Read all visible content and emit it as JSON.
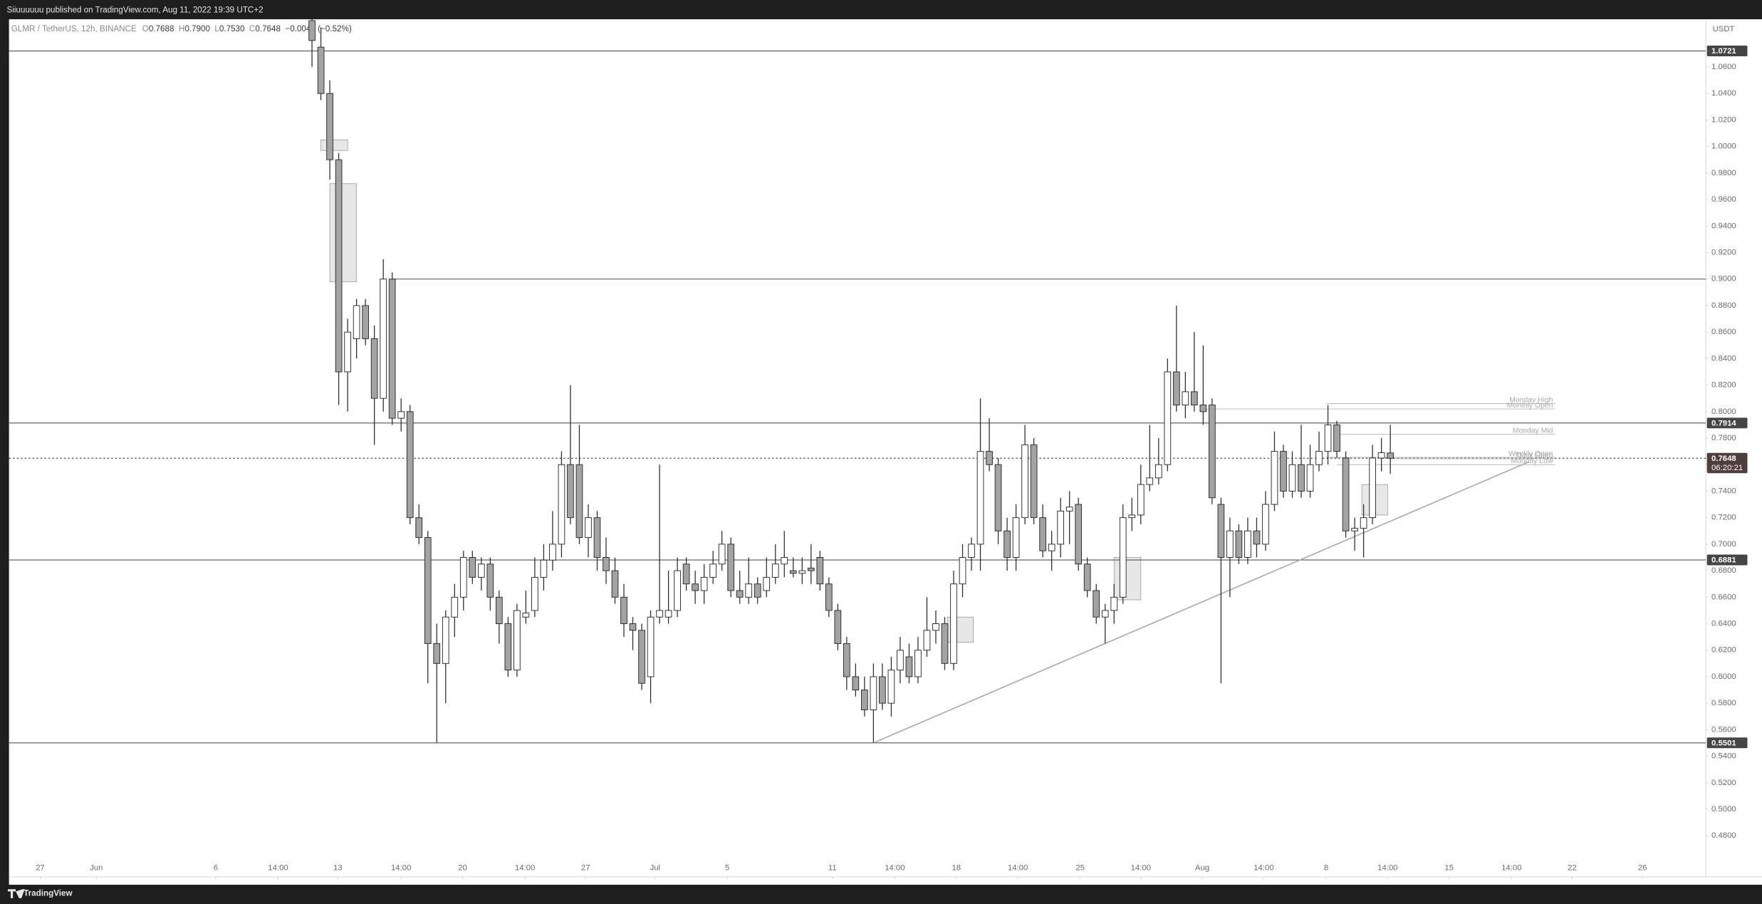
{
  "header": {
    "title": "Siiuuuuuu published on TradingView.com, Aug 11, 2022 19:39 UTC+2"
  },
  "footer": {
    "brand": "TradingView"
  },
  "chart_data": {
    "type": "candlestick",
    "legend": {
      "symbol": "GLMR / TetherUS, 12h, BINANCE",
      "items": [
        {
          "key": "O",
          "value": "0.7688"
        },
        {
          "key": "H",
          "value": "0.7900"
        },
        {
          "key": "L",
          "value": "0.7530"
        },
        {
          "key": "C",
          "value": "0.7648"
        }
      ],
      "change": "−0.0040 (−0.52%)"
    },
    "y_unit": "USDT",
    "up_color": "#ffffff",
    "down_color": "#a3a3a3",
    "outline_color": "#2b2b2b",
    "xlim": [
      -3.5,
      186.9
    ],
    "ylim": [
      0.449,
      1.096
    ],
    "yticks": [
      {
        "value": 0.48,
        "label": "0.4800"
      },
      {
        "value": 0.5,
        "label": "0.5000"
      },
      {
        "value": 0.52,
        "label": "0.5200"
      },
      {
        "value": 0.54,
        "label": "0.5400"
      },
      {
        "value": 0.56,
        "label": "0.5600"
      },
      {
        "value": 0.58,
        "label": "0.5800"
      },
      {
        "value": 0.6,
        "label": "0.6000"
      },
      {
        "value": 0.62,
        "label": "0.6200"
      },
      {
        "value": 0.64,
        "label": "0.6400"
      },
      {
        "value": 0.66,
        "label": "0.6600"
      },
      {
        "value": 0.68,
        "label": "0.6800"
      },
      {
        "value": 0.7,
        "label": "0.7000"
      },
      {
        "value": 0.72,
        "label": "0.7200"
      },
      {
        "value": 0.74,
        "label": "0.7400"
      },
      {
        "value": 0.76,
        "label": "0.7600"
      },
      {
        "value": 0.78,
        "label": "0.7800"
      },
      {
        "value": 0.8,
        "label": "0.8000"
      },
      {
        "value": 0.82,
        "label": "0.8200"
      },
      {
        "value": 0.84,
        "label": "0.8400"
      },
      {
        "value": 0.86,
        "label": "0.8600"
      },
      {
        "value": 0.88,
        "label": "0.8800"
      },
      {
        "value": 0.9,
        "label": "0.9000"
      },
      {
        "value": 0.92,
        "label": "0.9200"
      },
      {
        "value": 0.94,
        "label": "0.9400"
      },
      {
        "value": 0.96,
        "label": "0.9600"
      },
      {
        "value": 0.98,
        "label": "0.9800"
      },
      {
        "value": 1.0,
        "label": "1.0000"
      },
      {
        "value": 1.02,
        "label": "1.0200"
      },
      {
        "value": 1.04,
        "label": "1.0400"
      },
      {
        "value": 1.06,
        "label": "1.0600"
      }
    ],
    "xticks": [
      {
        "value": 0,
        "label": "27"
      },
      {
        "value": 6.3,
        "label": "Jun"
      },
      {
        "value": 19.7,
        "label": "6"
      },
      {
        "value": 26.7,
        "label": "14:00"
      },
      {
        "value": 33.4,
        "label": "13"
      },
      {
        "value": 40.5,
        "label": "14:00"
      },
      {
        "value": 47.4,
        "label": "20"
      },
      {
        "value": 54.4,
        "label": "14:00"
      },
      {
        "value": 61.2,
        "label": "27"
      },
      {
        "value": 69.0,
        "label": "Jul"
      },
      {
        "value": 77.1,
        "label": "5"
      },
      {
        "value": 88.9,
        "label": "11"
      },
      {
        "value": 95.9,
        "label": "14:00"
      },
      {
        "value": 102.8,
        "label": "18"
      },
      {
        "value": 109.7,
        "label": "14:00"
      },
      {
        "value": 116.7,
        "label": "25"
      },
      {
        "value": 123.5,
        "label": "14:00"
      },
      {
        "value": 130.4,
        "label": "Aug"
      },
      {
        "value": 137.3,
        "label": "14:00"
      },
      {
        "value": 144.3,
        "label": "8"
      },
      {
        "value": 151.2,
        "label": "14:00"
      },
      {
        "value": 158.1,
        "label": "15"
      },
      {
        "value": 165.1,
        "label": "14:00"
      },
      {
        "value": 171.9,
        "label": "22"
      },
      {
        "value": 179.8,
        "label": "26"
      }
    ],
    "x": [
      30.5,
      31.5,
      32.5,
      33.5,
      34.5,
      35.5,
      36.5,
      37.5,
      38.5,
      39.5,
      40.5,
      41.5,
      42.5,
      43.5,
      44.5,
      45.5,
      46.5,
      47.5,
      48.5,
      49.5,
      50.5,
      51.5,
      52.5,
      53.5,
      54.5,
      55.5,
      56.5,
      57.5,
      58.5,
      59.5,
      60.5,
      61.5,
      62.5,
      63.5,
      64.5,
      65.5,
      66.5,
      67.5,
      68.5,
      69.5,
      70.5,
      71.5,
      72.5,
      73.5,
      74.5,
      75.5,
      76.5,
      77.5,
      78.5,
      79.5,
      80.5,
      81.5,
      82.5,
      83.5,
      84.5,
      85.5,
      86.5,
      87.5,
      88.5,
      89.5,
      90.5,
      91.5,
      92.5,
      93.5,
      94.5,
      95.5,
      96.5,
      97.5,
      98.5,
      99.5,
      100.5,
      101.5,
      102.5,
      103.5,
      104.5,
      105.5,
      106.5,
      107.5,
      108.5,
      109.5,
      110.5,
      111.5,
      112.5,
      113.5,
      114.5,
      115.5,
      116.5,
      117.5,
      118.5,
      119.5,
      120.5,
      121.5,
      122.5,
      123.5,
      124.5,
      125.5,
      126.5,
      127.5,
      128.5,
      129.5,
      130.5,
      131.5,
      132.5,
      133.5,
      134.5,
      135.5,
      136.5,
      137.5,
      138.5,
      139.5,
      140.5,
      141.5,
      142.5,
      143.5,
      144.5,
      145.5,
      146.5,
      147.5,
      148.5,
      149.5,
      150.5,
      151.5
    ],
    "ohlc": [
      [
        1.095,
        1.096,
        1.06,
        1.08
      ],
      [
        1.075,
        1.09,
        1.035,
        1.04
      ],
      [
        1.04,
        1.05,
        0.975,
        0.99
      ],
      [
        0.99,
        0.995,
        0.805,
        0.83
      ],
      [
        0.83,
        0.87,
        0.8,
        0.86
      ],
      [
        0.855,
        0.885,
        0.84,
        0.88
      ],
      [
        0.88,
        0.885,
        0.85,
        0.855
      ],
      [
        0.855,
        0.865,
        0.775,
        0.81
      ],
      [
        0.81,
        0.915,
        0.8,
        0.9
      ],
      [
        0.9,
        0.905,
        0.79,
        0.795
      ],
      [
        0.795,
        0.81,
        0.785,
        0.8
      ],
      [
        0.8,
        0.805,
        0.715,
        0.72
      ],
      [
        0.72,
        0.73,
        0.7,
        0.705
      ],
      [
        0.705,
        0.71,
        0.595,
        0.625
      ],
      [
        0.625,
        0.64,
        0.5501,
        0.61
      ],
      [
        0.61,
        0.65,
        0.58,
        0.645
      ],
      [
        0.645,
        0.67,
        0.63,
        0.66
      ],
      [
        0.66,
        0.695,
        0.65,
        0.69
      ],
      [
        0.69,
        0.695,
        0.67,
        0.675
      ],
      [
        0.675,
        0.69,
        0.665,
        0.685
      ],
      [
        0.685,
        0.69,
        0.65,
        0.66
      ],
      [
        0.66,
        0.665,
        0.625,
        0.64
      ],
      [
        0.64,
        0.645,
        0.6,
        0.605
      ],
      [
        0.605,
        0.655,
        0.6,
        0.65
      ],
      [
        0.645,
        0.665,
        0.64,
        0.648
      ],
      [
        0.65,
        0.69,
        0.645,
        0.675
      ],
      [
        0.675,
        0.7,
        0.665,
        0.688
      ],
      [
        0.688,
        0.725,
        0.68,
        0.7
      ],
      [
        0.7,
        0.77,
        0.69,
        0.76
      ],
      [
        0.76,
        0.82,
        0.715,
        0.72
      ],
      [
        0.76,
        0.79,
        0.7,
        0.705
      ],
      [
        0.705,
        0.73,
        0.69,
        0.72
      ],
      [
        0.72,
        0.725,
        0.68,
        0.69
      ],
      [
        0.69,
        0.705,
        0.67,
        0.68
      ],
      [
        0.68,
        0.69,
        0.655,
        0.66
      ],
      [
        0.66,
        0.67,
        0.63,
        0.64
      ],
      [
        0.64,
        0.645,
        0.62,
        0.635
      ],
      [
        0.635,
        0.64,
        0.59,
        0.595
      ],
      [
        0.6,
        0.65,
        0.58,
        0.645
      ],
      [
        0.645,
        0.76,
        0.64,
        0.65
      ],
      [
        0.645,
        0.68,
        0.64,
        0.65
      ],
      [
        0.65,
        0.69,
        0.645,
        0.68
      ],
      [
        0.685,
        0.69,
        0.665,
        0.67
      ],
      [
        0.67,
        0.68,
        0.655,
        0.665
      ],
      [
        0.665,
        0.685,
        0.655,
        0.675
      ],
      [
        0.675,
        0.695,
        0.67,
        0.685
      ],
      [
        0.685,
        0.71,
        0.68,
        0.7
      ],
      [
        0.7,
        0.705,
        0.66,
        0.665
      ],
      [
        0.665,
        0.68,
        0.655,
        0.66
      ],
      [
        0.66,
        0.69,
        0.655,
        0.67
      ],
      [
        0.67,
        0.675,
        0.655,
        0.66
      ],
      [
        0.665,
        0.69,
        0.66,
        0.675
      ],
      [
        0.675,
        0.7,
        0.67,
        0.685
      ],
      [
        0.685,
        0.71,
        0.675,
        0.69
      ],
      [
        0.68,
        0.69,
        0.675,
        0.678
      ],
      [
        0.678,
        0.69,
        0.67,
        0.68
      ],
      [
        0.682,
        0.7,
        0.67,
        0.68
      ],
      [
        0.69,
        0.695,
        0.665,
        0.67
      ],
      [
        0.67,
        0.675,
        0.645,
        0.65
      ],
      [
        0.65,
        0.655,
        0.62,
        0.625
      ],
      [
        0.625,
        0.63,
        0.59,
        0.6
      ],
      [
        0.6,
        0.61,
        0.585,
        0.59
      ],
      [
        0.59,
        0.6,
        0.57,
        0.575
      ],
      [
        0.575,
        0.61,
        0.5501,
        0.6
      ],
      [
        0.6,
        0.61,
        0.575,
        0.58
      ],
      [
        0.58,
        0.615,
        0.57,
        0.605
      ],
      [
        0.605,
        0.63,
        0.595,
        0.62
      ],
      [
        0.615,
        0.625,
        0.595,
        0.6
      ],
      [
        0.6,
        0.63,
        0.595,
        0.62
      ],
      [
        0.62,
        0.66,
        0.615,
        0.635
      ],
      [
        0.635,
        0.65,
        0.625,
        0.64
      ],
      [
        0.64,
        0.645,
        0.605,
        0.61
      ],
      [
        0.61,
        0.68,
        0.605,
        0.67
      ],
      [
        0.67,
        0.7,
        0.66,
        0.69
      ],
      [
        0.69,
        0.705,
        0.68,
        0.7
      ],
      [
        0.7,
        0.81,
        0.68,
        0.77
      ],
      [
        0.77,
        0.795,
        0.755,
        0.76
      ],
      [
        0.76,
        0.765,
        0.7,
        0.71
      ],
      [
        0.71,
        0.72,
        0.68,
        0.69
      ],
      [
        0.69,
        0.73,
        0.68,
        0.72
      ],
      [
        0.72,
        0.79,
        0.715,
        0.775
      ],
      [
        0.775,
        0.78,
        0.715,
        0.72
      ],
      [
        0.72,
        0.73,
        0.69,
        0.695
      ],
      [
        0.695,
        0.71,
        0.68,
        0.7
      ],
      [
        0.7,
        0.735,
        0.69,
        0.725
      ],
      [
        0.725,
        0.74,
        0.7,
        0.728
      ],
      [
        0.73,
        0.735,
        0.68,
        0.685
      ],
      [
        0.685,
        0.69,
        0.66,
        0.665
      ],
      [
        0.665,
        0.67,
        0.64,
        0.645
      ],
      [
        0.645,
        0.655,
        0.625,
        0.65
      ],
      [
        0.65,
        0.67,
        0.64,
        0.66
      ],
      [
        0.66,
        0.73,
        0.655,
        0.72
      ],
      [
        0.72,
        0.735,
        0.71,
        0.722
      ],
      [
        0.722,
        0.76,
        0.715,
        0.745
      ],
      [
        0.745,
        0.79,
        0.74,
        0.75
      ],
      [
        0.75,
        0.78,
        0.745,
        0.76
      ],
      [
        0.76,
        0.84,
        0.755,
        0.83
      ],
      [
        0.83,
        0.88,
        0.8,
        0.805
      ],
      [
        0.805,
        0.83,
        0.795,
        0.815
      ],
      [
        0.815,
        0.86,
        0.8,
        0.805
      ],
      [
        0.805,
        0.85,
        0.79,
        0.8
      ],
      [
        0.805,
        0.81,
        0.73,
        0.735
      ],
      [
        0.73,
        0.735,
        0.595,
        0.69
      ],
      [
        0.69,
        0.72,
        0.66,
        0.71
      ],
      [
        0.71,
        0.715,
        0.685,
        0.69
      ],
      [
        0.69,
        0.72,
        0.685,
        0.71
      ],
      [
        0.71,
        0.72,
        0.69,
        0.7
      ],
      [
        0.7,
        0.74,
        0.695,
        0.73
      ],
      [
        0.73,
        0.785,
        0.725,
        0.77
      ],
      [
        0.77,
        0.775,
        0.735,
        0.74
      ],
      [
        0.74,
        0.77,
        0.735,
        0.76
      ],
      [
        0.76,
        0.79,
        0.735,
        0.74
      ],
      [
        0.74,
        0.775,
        0.735,
        0.76
      ],
      [
        0.76,
        0.785,
        0.755,
        0.77
      ],
      [
        0.77,
        0.805,
        0.76,
        0.79
      ],
      [
        0.79,
        0.793,
        0.765,
        0.77
      ],
      [
        0.765,
        0.77,
        0.705,
        0.71
      ],
      [
        0.71,
        0.72,
        0.695,
        0.712
      ],
      [
        0.712,
        0.73,
        0.69,
        0.72
      ],
      [
        0.72,
        0.775,
        0.715,
        0.765
      ],
      [
        0.765,
        0.78,
        0.755,
        0.769
      ],
      [
        0.7688,
        0.79,
        0.753,
        0.7648
      ]
    ],
    "levels": [
      {
        "value": 1.0721,
        "label": "1.0721",
        "x_from": -3.5
      },
      {
        "value": 0.9,
        "x_from": 39.5
      },
      {
        "value": 0.7914,
        "label": "0.7914",
        "x_from": -3.5
      },
      {
        "value": 0.7648,
        "label": "0.7648",
        "countdown": "06:20:21",
        "x_from": -3.5,
        "style": "dotted"
      },
      {
        "value": 0.6881,
        "label": "0.6881",
        "x_from": -3.5
      },
      {
        "value": 0.5501,
        "label": "0.5501",
        "x_from": -3.5
      }
    ],
    "trendline": {
      "x": [
        93.5,
        167
      ],
      "y": [
        0.5501,
        0.762
      ]
    },
    "annotations": [
      {
        "text": "Monday High",
        "value": 0.806,
        "x_from": 144.3,
        "x_to": 170
      },
      {
        "text": "Monthly Open",
        "value": 0.802,
        "x_from": 130.4,
        "x_to": 170
      },
      {
        "text": "Monday Mid",
        "value": 0.783,
        "x_from": 145.5,
        "x_to": 170
      },
      {
        "text": "Weekly Open",
        "value": 0.7655,
        "x_from": 144.3,
        "x_to": 170
      },
      {
        "text": "Daily Open",
        "value": 0.7645,
        "x_from": 151.3,
        "x_to": 170
      },
      {
        "text": "Monday Low",
        "value": 0.76,
        "x_from": 145.5,
        "x_to": 170
      }
    ],
    "boxes": [
      {
        "x0": 31.5,
        "x1": 34.5,
        "y0": 1.005,
        "y1": 0.997
      },
      {
        "x0": 32.5,
        "x1": 35.5,
        "y0": 0.972,
        "y1": 0.898
      },
      {
        "x0": 101.8,
        "x1": 104.7,
        "y0": 0.645,
        "y1": 0.626
      },
      {
        "x0": 120.5,
        "x1": 123.5,
        "y0": 0.69,
        "y1": 0.658
      },
      {
        "x0": 148.3,
        "x1": 151.2,
        "y0": 0.745,
        "y1": 0.722
      }
    ]
  }
}
